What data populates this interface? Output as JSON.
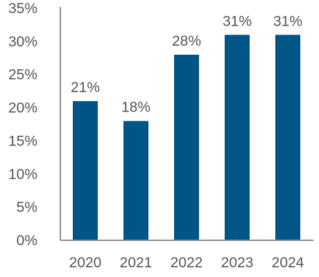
{
  "chart_data": {
    "type": "bar",
    "title": "",
    "xlabel": "",
    "ylabel": "",
    "categories": [
      "2020",
      "2021",
      "2022",
      "2023",
      "2024"
    ],
    "values": [
      21,
      18,
      28,
      31,
      31
    ],
    "data_labels": [
      "21%",
      "18%",
      "28%",
      "31%",
      "31%"
    ],
    "ylim": [
      0,
      35
    ],
    "y_ticks": [
      0,
      5,
      10,
      15,
      20,
      25,
      30,
      35
    ],
    "y_tick_labels": [
      "0%",
      "5%",
      "10%",
      "15%",
      "20%",
      "25%",
      "30%",
      "35%"
    ],
    "grid": false,
    "legend": "none",
    "bar_color": "#005587"
  }
}
